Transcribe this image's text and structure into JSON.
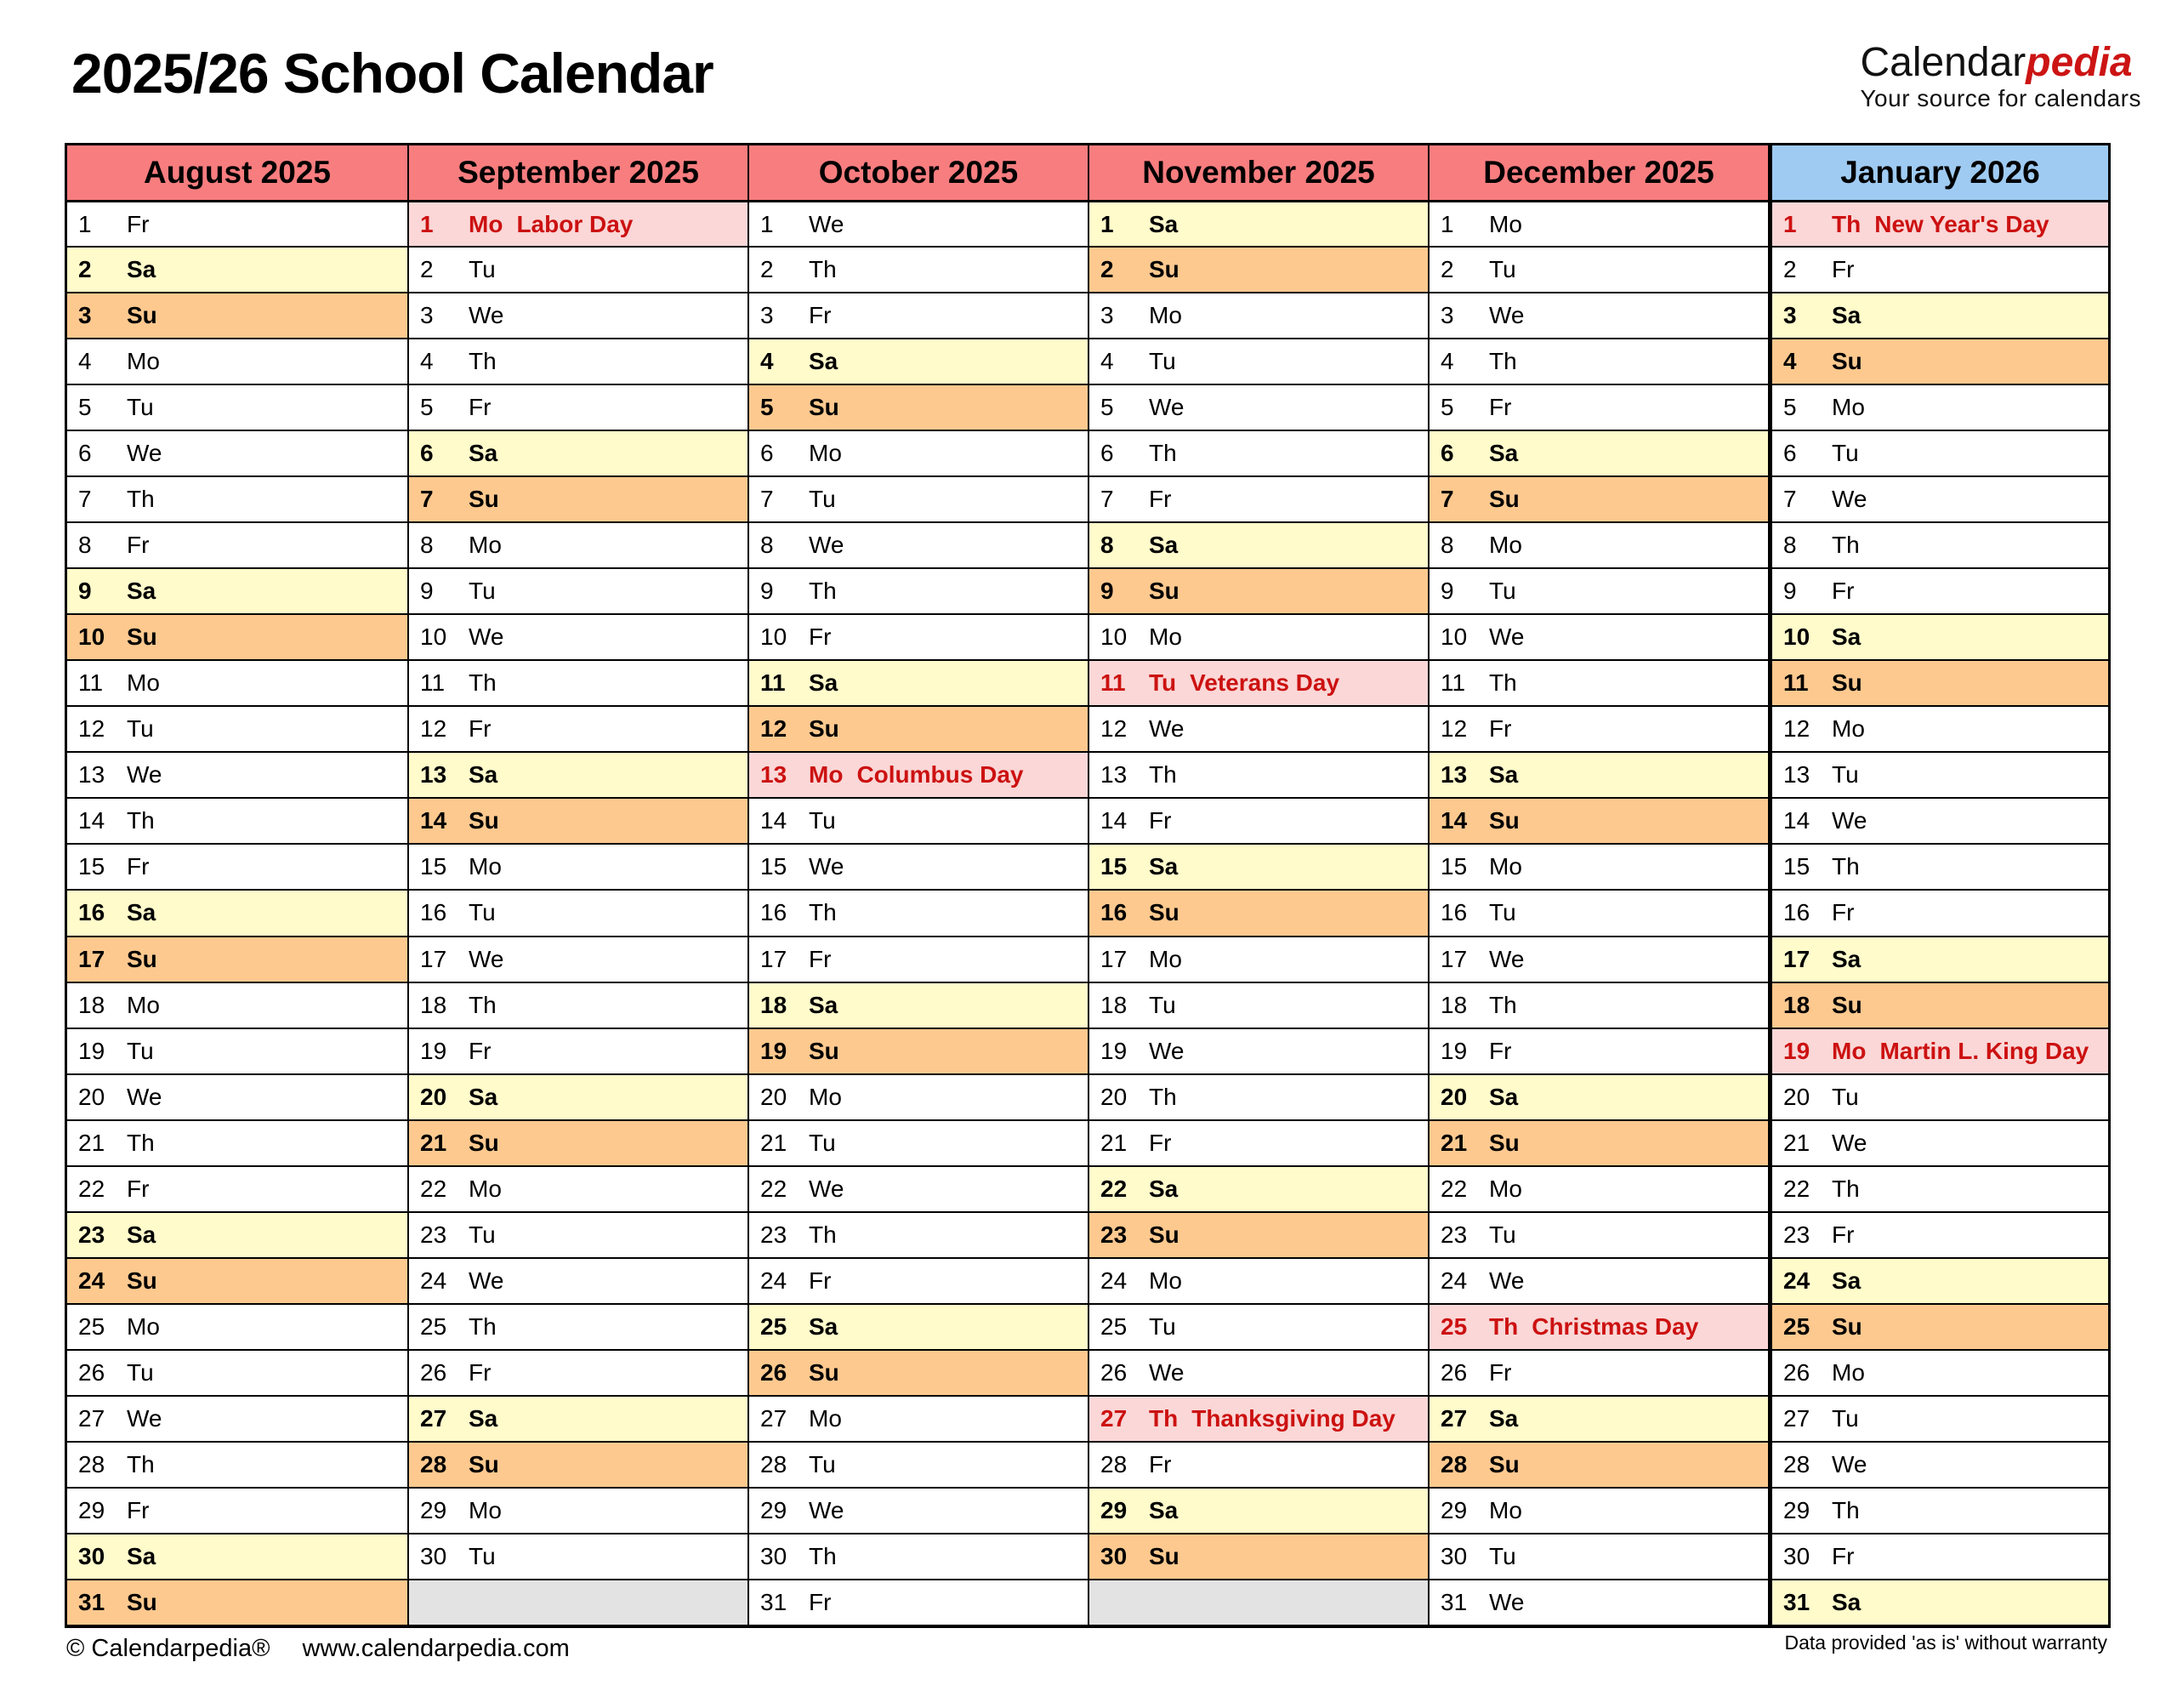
{
  "header": {
    "title": "2025/26 School Calendar",
    "logo": {
      "black": "Calendar",
      "red": "pedia",
      "tagline": "Your source for calendars"
    }
  },
  "footer": {
    "copyright": "© Calendarpedia®",
    "url": "www.calendarpedia.com",
    "disclaimer": "Data provided 'as is' without warranty"
  },
  "colors": {
    "month_header_red": "#F87D7F",
    "month_header_blue": "#9FCBF2",
    "saturday_bg": "#FFFBCB",
    "sunday_bg": "#FEC98F",
    "holiday_bg": "#FBD7D7",
    "holiday_text": "#CC1111",
    "empty_cell_bg": "#E3E3E3",
    "brand_red": "#CC1414"
  },
  "calendar": {
    "max_rows": 31,
    "months": [
      {
        "label": "August 2025",
        "theme": "red",
        "days": [
          [
            1,
            "Fr"
          ],
          [
            2,
            "Sa"
          ],
          [
            3,
            "Su"
          ],
          [
            4,
            "Mo"
          ],
          [
            5,
            "Tu"
          ],
          [
            6,
            "We"
          ],
          [
            7,
            "Th"
          ],
          [
            8,
            "Fr"
          ],
          [
            9,
            "Sa"
          ],
          [
            10,
            "Su"
          ],
          [
            11,
            "Mo"
          ],
          [
            12,
            "Tu"
          ],
          [
            13,
            "We"
          ],
          [
            14,
            "Th"
          ],
          [
            15,
            "Fr"
          ],
          [
            16,
            "Sa"
          ],
          [
            17,
            "Su"
          ],
          [
            18,
            "Mo"
          ],
          [
            19,
            "Tu"
          ],
          [
            20,
            "We"
          ],
          [
            21,
            "Th"
          ],
          [
            22,
            "Fr"
          ],
          [
            23,
            "Sa"
          ],
          [
            24,
            "Su"
          ],
          [
            25,
            "Mo"
          ],
          [
            26,
            "Tu"
          ],
          [
            27,
            "We"
          ],
          [
            28,
            "Th"
          ],
          [
            29,
            "Fr"
          ],
          [
            30,
            "Sa"
          ],
          [
            31,
            "Su"
          ]
        ],
        "holidays": {}
      },
      {
        "label": "September 2025",
        "theme": "red",
        "days": [
          [
            1,
            "Mo"
          ],
          [
            2,
            "Tu"
          ],
          [
            3,
            "We"
          ],
          [
            4,
            "Th"
          ],
          [
            5,
            "Fr"
          ],
          [
            6,
            "Sa"
          ],
          [
            7,
            "Su"
          ],
          [
            8,
            "Mo"
          ],
          [
            9,
            "Tu"
          ],
          [
            10,
            "We"
          ],
          [
            11,
            "Th"
          ],
          [
            12,
            "Fr"
          ],
          [
            13,
            "Sa"
          ],
          [
            14,
            "Su"
          ],
          [
            15,
            "Mo"
          ],
          [
            16,
            "Tu"
          ],
          [
            17,
            "We"
          ],
          [
            18,
            "Th"
          ],
          [
            19,
            "Fr"
          ],
          [
            20,
            "Sa"
          ],
          [
            21,
            "Su"
          ],
          [
            22,
            "Mo"
          ],
          [
            23,
            "Tu"
          ],
          [
            24,
            "We"
          ],
          [
            25,
            "Th"
          ],
          [
            26,
            "Fr"
          ],
          [
            27,
            "Sa"
          ],
          [
            28,
            "Su"
          ],
          [
            29,
            "Mo"
          ],
          [
            30,
            "Tu"
          ]
        ],
        "holidays": {
          "1": "Labor Day"
        }
      },
      {
        "label": "October 2025",
        "theme": "red",
        "days": [
          [
            1,
            "We"
          ],
          [
            2,
            "Th"
          ],
          [
            3,
            "Fr"
          ],
          [
            4,
            "Sa"
          ],
          [
            5,
            "Su"
          ],
          [
            6,
            "Mo"
          ],
          [
            7,
            "Tu"
          ],
          [
            8,
            "We"
          ],
          [
            9,
            "Th"
          ],
          [
            10,
            "Fr"
          ],
          [
            11,
            "Sa"
          ],
          [
            12,
            "Su"
          ],
          [
            13,
            "Mo"
          ],
          [
            14,
            "Tu"
          ],
          [
            15,
            "We"
          ],
          [
            16,
            "Th"
          ],
          [
            17,
            "Fr"
          ],
          [
            18,
            "Sa"
          ],
          [
            19,
            "Su"
          ],
          [
            20,
            "Mo"
          ],
          [
            21,
            "Tu"
          ],
          [
            22,
            "We"
          ],
          [
            23,
            "Th"
          ],
          [
            24,
            "Fr"
          ],
          [
            25,
            "Sa"
          ],
          [
            26,
            "Su"
          ],
          [
            27,
            "Mo"
          ],
          [
            28,
            "Tu"
          ],
          [
            29,
            "We"
          ],
          [
            30,
            "Th"
          ],
          [
            31,
            "Fr"
          ]
        ],
        "holidays": {
          "13": "Columbus Day"
        }
      },
      {
        "label": "November 2025",
        "theme": "red",
        "days": [
          [
            1,
            "Sa"
          ],
          [
            2,
            "Su"
          ],
          [
            3,
            "Mo"
          ],
          [
            4,
            "Tu"
          ],
          [
            5,
            "We"
          ],
          [
            6,
            "Th"
          ],
          [
            7,
            "Fr"
          ],
          [
            8,
            "Sa"
          ],
          [
            9,
            "Su"
          ],
          [
            10,
            "Mo"
          ],
          [
            11,
            "Tu"
          ],
          [
            12,
            "We"
          ],
          [
            13,
            "Th"
          ],
          [
            14,
            "Fr"
          ],
          [
            15,
            "Sa"
          ],
          [
            16,
            "Su"
          ],
          [
            17,
            "Mo"
          ],
          [
            18,
            "Tu"
          ],
          [
            19,
            "We"
          ],
          [
            20,
            "Th"
          ],
          [
            21,
            "Fr"
          ],
          [
            22,
            "Sa"
          ],
          [
            23,
            "Su"
          ],
          [
            24,
            "Mo"
          ],
          [
            25,
            "Tu"
          ],
          [
            26,
            "We"
          ],
          [
            27,
            "Th"
          ],
          [
            28,
            "Fr"
          ],
          [
            29,
            "Sa"
          ],
          [
            30,
            "Su"
          ]
        ],
        "holidays": {
          "11": "Veterans Day",
          "27": "Thanksgiving Day"
        }
      },
      {
        "label": "December 2025",
        "theme": "red",
        "days": [
          [
            1,
            "Mo"
          ],
          [
            2,
            "Tu"
          ],
          [
            3,
            "We"
          ],
          [
            4,
            "Th"
          ],
          [
            5,
            "Fr"
          ],
          [
            6,
            "Sa"
          ],
          [
            7,
            "Su"
          ],
          [
            8,
            "Mo"
          ],
          [
            9,
            "Tu"
          ],
          [
            10,
            "We"
          ],
          [
            11,
            "Th"
          ],
          [
            12,
            "Fr"
          ],
          [
            13,
            "Sa"
          ],
          [
            14,
            "Su"
          ],
          [
            15,
            "Mo"
          ],
          [
            16,
            "Tu"
          ],
          [
            17,
            "We"
          ],
          [
            18,
            "Th"
          ],
          [
            19,
            "Fr"
          ],
          [
            20,
            "Sa"
          ],
          [
            21,
            "Su"
          ],
          [
            22,
            "Mo"
          ],
          [
            23,
            "Tu"
          ],
          [
            24,
            "We"
          ],
          [
            25,
            "Th"
          ],
          [
            26,
            "Fr"
          ],
          [
            27,
            "Sa"
          ],
          [
            28,
            "Su"
          ],
          [
            29,
            "Mo"
          ],
          [
            30,
            "Tu"
          ],
          [
            31,
            "We"
          ]
        ],
        "holidays": {
          "25": "Christmas Day"
        }
      },
      {
        "label": "January 2026",
        "theme": "blue",
        "days": [
          [
            1,
            "Th"
          ],
          [
            2,
            "Fr"
          ],
          [
            3,
            "Sa"
          ],
          [
            4,
            "Su"
          ],
          [
            5,
            "Mo"
          ],
          [
            6,
            "Tu"
          ],
          [
            7,
            "We"
          ],
          [
            8,
            "Th"
          ],
          [
            9,
            "Fr"
          ],
          [
            10,
            "Sa"
          ],
          [
            11,
            "Su"
          ],
          [
            12,
            "Mo"
          ],
          [
            13,
            "Tu"
          ],
          [
            14,
            "We"
          ],
          [
            15,
            "Th"
          ],
          [
            16,
            "Fr"
          ],
          [
            17,
            "Sa"
          ],
          [
            18,
            "Su"
          ],
          [
            19,
            "Mo"
          ],
          [
            20,
            "Tu"
          ],
          [
            21,
            "We"
          ],
          [
            22,
            "Th"
          ],
          [
            23,
            "Fr"
          ],
          [
            24,
            "Sa"
          ],
          [
            25,
            "Su"
          ],
          [
            26,
            "Mo"
          ],
          [
            27,
            "Tu"
          ],
          [
            28,
            "We"
          ],
          [
            29,
            "Th"
          ],
          [
            30,
            "Fr"
          ],
          [
            31,
            "Sa"
          ]
        ],
        "holidays": {
          "1": "New Year's Day",
          "19": "Martin L. King Day"
        }
      }
    ]
  }
}
